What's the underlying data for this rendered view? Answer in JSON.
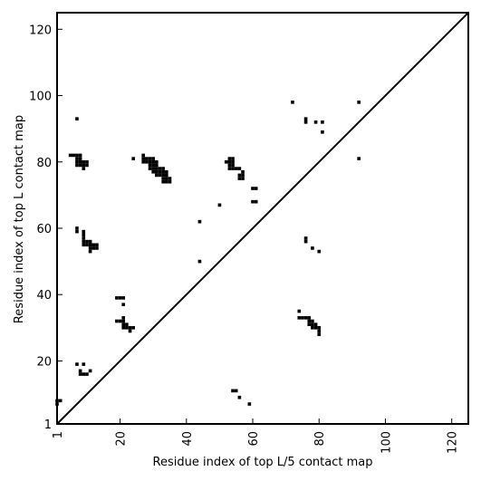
{
  "chart_data": {
    "type": "heatmap",
    "title": "",
    "xlabel": "Residue index of top L/5 contact map",
    "ylabel": "Residue index of top L contact map",
    "xlim": [
      1,
      125
    ],
    "ylim": [
      1,
      125
    ],
    "xticks": [
      1,
      20,
      40,
      60,
      80,
      100,
      120
    ],
    "yticks": [
      1,
      20,
      40,
      60,
      80,
      100,
      120
    ],
    "xtick_labels": [
      "1",
      "20",
      "40",
      "60",
      "80",
      "100",
      "120"
    ],
    "ytick_labels": [
      "1",
      "20",
      "40",
      "60",
      "80",
      "100",
      "120"
    ],
    "grid": false,
    "diagonal": true,
    "colors": {
      "contact": "#000000",
      "background": "#ffffff"
    },
    "contacts": [
      [
        1,
        8
      ],
      [
        2,
        8
      ],
      [
        1,
        7
      ],
      [
        5,
        82
      ],
      [
        6,
        82
      ],
      [
        7,
        82
      ],
      [
        8,
        82
      ],
      [
        7,
        81
      ],
      [
        8,
        81
      ],
      [
        7,
        80
      ],
      [
        8,
        80
      ],
      [
        9,
        80
      ],
      [
        10,
        80
      ],
      [
        7,
        79
      ],
      [
        8,
        79
      ],
      [
        9,
        79
      ],
      [
        10,
        79
      ],
      [
        9,
        78
      ],
      [
        7,
        93
      ],
      [
        7,
        60
      ],
      [
        7,
        59
      ],
      [
        9,
        59
      ],
      [
        9,
        58
      ],
      [
        9,
        57
      ],
      [
        9,
        56
      ],
      [
        10,
        56
      ],
      [
        11,
        56
      ],
      [
        9,
        55
      ],
      [
        10,
        55
      ],
      [
        11,
        55
      ],
      [
        12,
        55
      ],
      [
        13,
        55
      ],
      [
        11,
        54
      ],
      [
        12,
        54
      ],
      [
        13,
        54
      ],
      [
        11,
        53
      ],
      [
        7,
        19
      ],
      [
        9,
        19
      ],
      [
        8,
        17
      ],
      [
        8,
        16
      ],
      [
        9,
        16
      ],
      [
        10,
        16
      ],
      [
        11,
        17
      ],
      [
        19,
        39
      ],
      [
        20,
        39
      ],
      [
        21,
        39
      ],
      [
        21,
        37
      ],
      [
        19,
        32
      ],
      [
        20,
        32
      ],
      [
        21,
        32
      ],
      [
        21,
        33
      ],
      [
        21,
        31
      ],
      [
        22,
        31
      ],
      [
        21,
        30
      ],
      [
        22,
        30
      ],
      [
        23,
        30
      ],
      [
        24,
        30
      ],
      [
        23,
        29
      ],
      [
        24,
        81
      ],
      [
        27,
        82
      ],
      [
        27,
        81
      ],
      [
        28,
        81
      ],
      [
        29,
        81
      ],
      [
        30,
        81
      ],
      [
        27,
        80
      ],
      [
        28,
        80
      ],
      [
        29,
        80
      ],
      [
        30,
        80
      ],
      [
        31,
        80
      ],
      [
        29,
        79
      ],
      [
        30,
        79
      ],
      [
        31,
        79
      ],
      [
        29,
        78
      ],
      [
        30,
        78
      ],
      [
        31,
        78
      ],
      [
        32,
        78
      ],
      [
        33,
        78
      ],
      [
        30,
        77
      ],
      [
        31,
        77
      ],
      [
        32,
        77
      ],
      [
        33,
        77
      ],
      [
        34,
        77
      ],
      [
        31,
        76
      ],
      [
        32,
        76
      ],
      [
        33,
        76
      ],
      [
        34,
        76
      ],
      [
        33,
        75
      ],
      [
        34,
        75
      ],
      [
        35,
        75
      ],
      [
        33,
        74
      ],
      [
        34,
        74
      ],
      [
        35,
        74
      ],
      [
        44,
        62
      ],
      [
        44,
        50
      ],
      [
        50,
        67
      ],
      [
        52,
        80
      ],
      [
        53,
        81
      ],
      [
        54,
        81
      ],
      [
        53,
        80
      ],
      [
        54,
        80
      ],
      [
        53,
        79
      ],
      [
        54,
        79
      ],
      [
        53,
        78
      ],
      [
        54,
        78
      ],
      [
        55,
        78
      ],
      [
        56,
        78
      ],
      [
        57,
        77
      ],
      [
        57,
        76
      ],
      [
        56,
        76
      ],
      [
        56,
        75
      ],
      [
        57,
        75
      ],
      [
        60,
        72
      ],
      [
        61,
        72
      ],
      [
        60,
        68
      ],
      [
        61,
        68
      ],
      [
        54,
        11
      ],
      [
        55,
        11
      ],
      [
        56,
        9
      ],
      [
        59,
        7
      ],
      [
        72,
        98
      ],
      [
        76,
        93
      ],
      [
        76,
        92
      ],
      [
        79,
        92
      ],
      [
        81,
        92
      ],
      [
        81,
        89
      ],
      [
        92,
        98
      ],
      [
        92,
        81
      ],
      [
        76,
        57
      ],
      [
        76,
        56
      ],
      [
        78,
        54
      ],
      [
        80,
        53
      ],
      [
        74,
        35
      ],
      [
        74,
        33
      ],
      [
        75,
        33
      ],
      [
        76,
        33
      ],
      [
        77,
        33
      ],
      [
        77,
        32
      ],
      [
        78,
        32
      ],
      [
        77,
        31
      ],
      [
        78,
        31
      ],
      [
        79,
        31
      ],
      [
        78,
        30
      ],
      [
        79,
        30
      ],
      [
        80,
        30
      ],
      [
        80,
        29
      ],
      [
        80,
        28
      ]
    ]
  }
}
